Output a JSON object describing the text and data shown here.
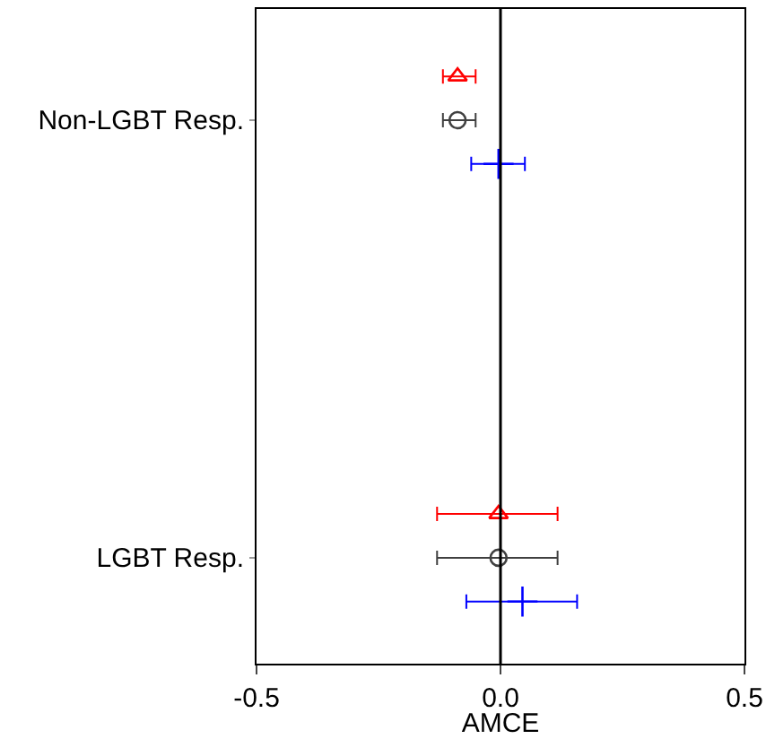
{
  "chart_data": {
    "type": "scatter",
    "orientation": "horizontal",
    "xlabel": "AMCE",
    "categories": [
      "Non-LGBT Resp.",
      "LGBT Resp."
    ],
    "xlim": [
      -0.5,
      0.5
    ],
    "xticks": [
      -0.5,
      {
        "value": 0,
        "label": "0.0"
      },
      0.5
    ],
    "grid": false,
    "ref_lines": [
      {
        "axis": "x",
        "value": 0,
        "color": "#000000"
      }
    ],
    "series": [
      {
        "color": "#ff0000",
        "marker": "triangle",
        "values": [
          -0.088,
          -0.004
        ],
        "errors": [
          [
            -0.118,
            -0.051
          ],
          [
            -0.13,
            0.117
          ]
        ]
      },
      {
        "color": "#404040",
        "marker": "circle",
        "values": [
          -0.088,
          -0.004
        ],
        "errors": [
          [
            -0.118,
            -0.051
          ],
          [
            -0.13,
            0.117
          ]
        ]
      },
      {
        "color": "#0000ff",
        "marker": "cross",
        "values": [
          -0.004,
          0.045
        ],
        "errors": [
          [
            -0.06,
            0.05
          ],
          [
            -0.07,
            0.157
          ]
        ]
      }
    ]
  }
}
